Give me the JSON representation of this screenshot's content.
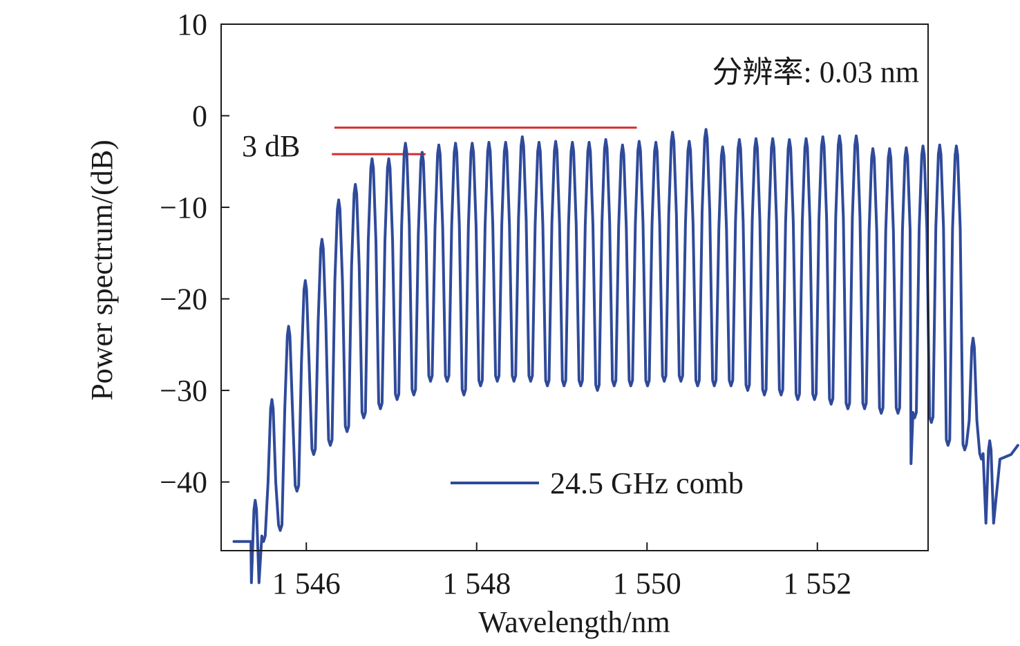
{
  "chart_data": {
    "type": "line",
    "xlabel": "Wavelength/nm",
    "ylabel": "Power spectrum/(dB)",
    "xlim": [
      1545.0,
      1553.3
    ],
    "ylim": [
      -47.5,
      10
    ],
    "x_ticks": [
      1546,
      1548,
      1550,
      1552
    ],
    "x_tick_labels": [
      "1 546",
      "1 548",
      "1 550",
      "1 552"
    ],
    "y_ticks": [
      10,
      0,
      -10,
      -20,
      -30,
      -40
    ],
    "y_tick_labels": [
      "10",
      "0",
      "−10",
      "−20",
      "−30",
      "−40"
    ],
    "grid": false,
    "legend_position": "bottom-center",
    "series": [
      {
        "name": "24.5 GHz comb",
        "color": "#2f4a9a",
        "comb": {
          "first_peak_nm": 1545.4,
          "line_spacing_nm": 0.196,
          "peak_power_db": [
            -42,
            -31,
            -23,
            -18,
            -13.5,
            -9.2,
            -7.5,
            -4.7,
            -4.7,
            -3.0,
            -4.0,
            -3.2,
            -3.0,
            -3.0,
            -2.9,
            -2.9,
            -2.3,
            -2.9,
            -2.8,
            -2.9,
            -2.9,
            -2.6,
            -3.2,
            -2.8,
            -2.9,
            -1.8,
            -2.8,
            -1.5,
            -3.4,
            -2.6,
            -2.5,
            -2.5,
            -2.6,
            -2.5,
            -2.3,
            -2.2,
            -2.2,
            -3.6,
            -3.6,
            -3.5,
            -3.3,
            -3.2,
            -3.3,
            -24.3,
            -35.5
          ],
          "valley_power_db": [
            -46.5,
            -45.3,
            -41.0,
            -37.0,
            -36.0,
            -34.5,
            -33.0,
            -32.0,
            -31.0,
            -30.5,
            -29.0,
            -29.0,
            -30.5,
            -29.5,
            -29.0,
            -29.0,
            -29.0,
            -29.5,
            -29.5,
            -29.5,
            -30.0,
            -29.5,
            -29.5,
            -29.5,
            -29.0,
            -29.0,
            -29.5,
            -29.5,
            -29.5,
            -30.0,
            -30.5,
            -30.5,
            -31.0,
            -31.0,
            -31.5,
            -32.0,
            -32.0,
            -32.5,
            -32.5,
            -33.0,
            -33.5,
            -36.0,
            -36.5,
            -37.5
          ],
          "edge_x": [
            1545.15,
            1545.35,
            1553.1
          ],
          "edge_y": [
            -46.5,
            -46.5,
            -38.0
          ]
        }
      }
    ],
    "annotations": [
      {
        "text": "分辨率: 0.03 nm",
        "position": "top-right"
      },
      {
        "text": "3 dB",
        "marker": {
          "color": "#d62b2b",
          "lines": [
            {
              "x": [
                1546.33,
                1549.88
              ],
              "y": -1.3
            },
            {
              "x": [
                1546.3,
                1547.4
              ],
              "y": -4.2
            }
          ]
        }
      }
    ]
  }
}
